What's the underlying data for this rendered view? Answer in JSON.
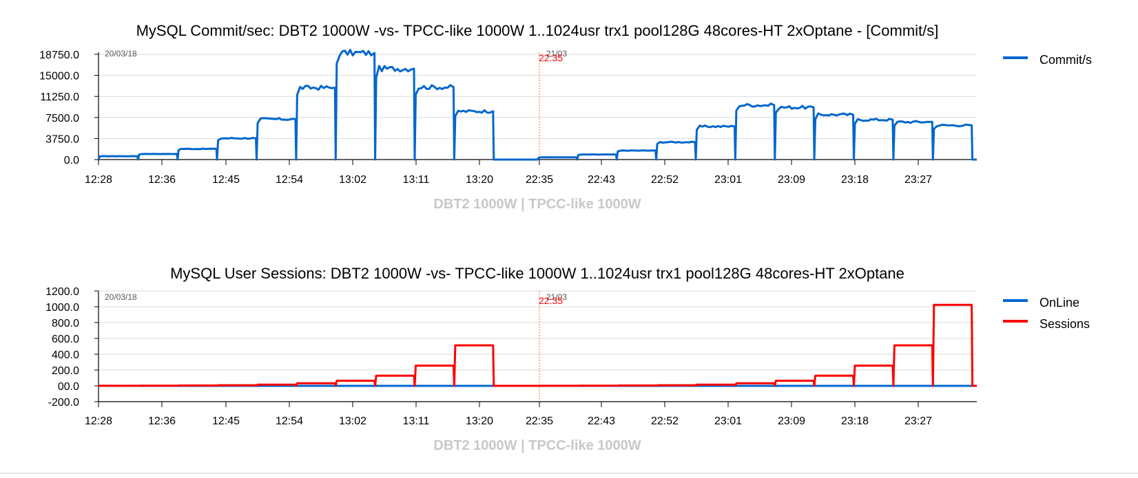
{
  "chart_data": [
    {
      "type": "line",
      "title": "MySQL Commit/sec: DBT2 1000W -vs- TPCC-like 1000W 1..1024usr trx1 pool128G 48cores-HT 2xOptane - [Commit/s]",
      "xlabel": "DBT2 1000W | TPCC-like 1000W",
      "ylabel": "",
      "ylim": [
        0,
        18750
      ],
      "yticks": [
        "18750.0",
        "15000.0",
        "11250.0",
        "7500.0",
        "3750.0",
        "0.0"
      ],
      "ytick_values": [
        18750,
        15000,
        11250,
        7500,
        3750,
        0
      ],
      "xticks": [
        "12:28",
        "12:36",
        "12:45",
        "12:54",
        "13:02",
        "13:11",
        "13:20",
        "22:35",
        "22:43",
        "22:52",
        "23:01",
        "23:09",
        "23:18",
        "23:27"
      ],
      "date_labels": {
        "left": "20/03/18",
        "right": "21/03",
        "marker_time": "22:35"
      },
      "legend_position": "right",
      "grid": true,
      "series": [
        {
          "name": "Commit/s",
          "color": "#0066cc",
          "levels": [
            {
              "start": 0.0,
              "end": 4.5,
              "value": 600
            },
            {
              "start": 4.5,
              "end": 9.0,
              "value": 1000
            },
            {
              "start": 9.0,
              "end": 13.5,
              "value": 1900
            },
            {
              "start": 13.5,
              "end": 18.0,
              "value": 3800
            },
            {
              "start": 18.0,
              "end": 22.5,
              "value": 7200
            },
            {
              "start": 22.5,
              "end": 27.0,
              "value": 12800
            },
            {
              "start": 27.0,
              "end": 31.5,
              "value": 19000
            },
            {
              "start": 31.5,
              "end": 36.0,
              "value": 16200
            },
            {
              "start": 36.0,
              "end": 40.5,
              "value": 12900
            },
            {
              "start": 40.5,
              "end": 45.0,
              "value": 8600
            },
            {
              "start": 45.0,
              "end": 50.0,
              "value": 0
            },
            {
              "start": 50.0,
              "end": 54.5,
              "value": 400
            },
            {
              "start": 54.5,
              "end": 59.0,
              "value": 900
            },
            {
              "start": 59.0,
              "end": 63.5,
              "value": 1600
            },
            {
              "start": 63.5,
              "end": 68.0,
              "value": 3100
            },
            {
              "start": 68.0,
              "end": 72.5,
              "value": 5900
            },
            {
              "start": 72.5,
              "end": 77.0,
              "value": 9700
            },
            {
              "start": 77.0,
              "end": 81.5,
              "value": 9300
            },
            {
              "start": 81.5,
              "end": 86.0,
              "value": 8000
            },
            {
              "start": 86.0,
              "end": 90.5,
              "value": 7100
            },
            {
              "start": 90.5,
              "end": 95.0,
              "value": 6700
            },
            {
              "start": 95.0,
              "end": 99.5,
              "value": 6100
            },
            {
              "start": 99.5,
              "end": 100.0,
              "value": 0
            }
          ]
        }
      ]
    },
    {
      "type": "line",
      "title": "MySQL User Sessions: DBT2 1000W -vs- TPCC-like 1000W 1..1024usr trx1 pool128G 48cores-HT 2xOptane",
      "xlabel": "DBT2 1000W | TPCC-like 1000W",
      "ylabel": "",
      "ylim": [
        -200,
        1200
      ],
      "yticks": [
        "1200.0",
        "1000.0",
        "800.0",
        "600.0",
        "400.0",
        "200.0",
        "00.0",
        "-200.0"
      ],
      "ytick_values": [
        1200,
        1000,
        800,
        600,
        400,
        200,
        0,
        -200
      ],
      "xticks": [
        "12:28",
        "12:36",
        "12:45",
        "12:54",
        "13:02",
        "13:11",
        "13:20",
        "22:35",
        "22:43",
        "22:52",
        "23:01",
        "23:09",
        "23:18",
        "23:27"
      ],
      "date_labels": {
        "left": "20/03/18",
        "right": "21/03",
        "marker_time": "22:35"
      },
      "legend_position": "right",
      "grid": true,
      "series": [
        {
          "name": "OnLine",
          "color": "#0066cc",
          "levels": [
            {
              "start": 0.0,
              "end": 100.0,
              "value": 0
            }
          ]
        },
        {
          "name": "Sessions",
          "color": "#ff0000",
          "levels": [
            {
              "start": 0.0,
              "end": 4.5,
              "value": 1
            },
            {
              "start": 4.5,
              "end": 9.0,
              "value": 2
            },
            {
              "start": 9.0,
              "end": 13.5,
              "value": 4
            },
            {
              "start": 13.5,
              "end": 18.0,
              "value": 8
            },
            {
              "start": 18.0,
              "end": 22.5,
              "value": 16
            },
            {
              "start": 22.5,
              "end": 27.0,
              "value": 32
            },
            {
              "start": 27.0,
              "end": 31.5,
              "value": 64
            },
            {
              "start": 31.5,
              "end": 36.0,
              "value": 128
            },
            {
              "start": 36.0,
              "end": 40.5,
              "value": 256
            },
            {
              "start": 40.5,
              "end": 45.0,
              "value": 512
            },
            {
              "start": 45.0,
              "end": 50.0,
              "value": 0
            },
            {
              "start": 50.0,
              "end": 54.5,
              "value": 1
            },
            {
              "start": 54.5,
              "end": 59.0,
              "value": 2
            },
            {
              "start": 59.0,
              "end": 63.5,
              "value": 4
            },
            {
              "start": 63.5,
              "end": 68.0,
              "value": 8
            },
            {
              "start": 68.0,
              "end": 72.5,
              "value": 16
            },
            {
              "start": 72.5,
              "end": 77.0,
              "value": 32
            },
            {
              "start": 77.0,
              "end": 81.5,
              "value": 64
            },
            {
              "start": 81.5,
              "end": 86.0,
              "value": 128
            },
            {
              "start": 86.0,
              "end": 90.5,
              "value": 256
            },
            {
              "start": 90.5,
              "end": 95.0,
              "value": 512
            },
            {
              "start": 95.0,
              "end": 99.5,
              "value": 1024
            },
            {
              "start": 99.5,
              "end": 100.0,
              "value": 0
            }
          ]
        }
      ]
    }
  ]
}
